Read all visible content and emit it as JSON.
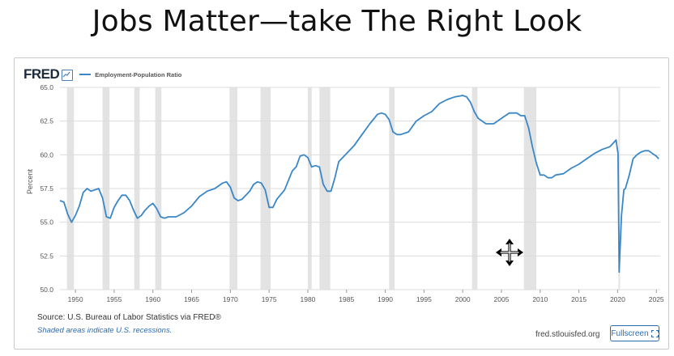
{
  "slide_title": "Jobs Matter—take The Right Look",
  "fred": {
    "logo": "FRED",
    "source": "Source: U.S. Bureau of Labor Statistics via FRED®",
    "note": "Shaded areas indicate U.S. recessions.",
    "url": "fred.stlouisfed.org",
    "fullscreen_label": "Fullscreen",
    "fullscreen_icon": "expand-icon"
  },
  "cursor_icon": "move-cursor-icon",
  "chart_data": {
    "type": "line",
    "title": "",
    "xlabel": "",
    "ylabel": "Percent",
    "xlim": [
      1948,
      2025.5
    ],
    "ylim": [
      50,
      65
    ],
    "yticks": [
      50.0,
      52.5,
      55.0,
      57.5,
      60.0,
      62.5,
      65.0
    ],
    "ytick_labels": [
      "50.0",
      "52.5",
      "55.0",
      "57.5",
      "60.0",
      "62.5",
      "65.0"
    ],
    "xticks": [
      1950,
      1955,
      1960,
      1965,
      1970,
      1975,
      1980,
      1985,
      1990,
      1995,
      2000,
      2005,
      2010,
      2015,
      2020,
      2025
    ],
    "xtick_labels": [
      "1950",
      "1955",
      "1960",
      "1965",
      "1970",
      "1975",
      "1980",
      "1985",
      "1990",
      "1995",
      "2000",
      "2005",
      "2010",
      "2015",
      "2020",
      "2025"
    ],
    "grid": true,
    "legend_position": "top-left",
    "line_color": "#3a87c8",
    "recession_color": "#e3e3e3",
    "recessions": [
      [
        1948.9,
        1949.8
      ],
      [
        1953.5,
        1954.4
      ],
      [
        1957.6,
        1958.3
      ],
      [
        1960.3,
        1961.1
      ],
      [
        1969.9,
        1970.9
      ],
      [
        1973.9,
        1975.2
      ],
      [
        1980.0,
        1980.5
      ],
      [
        1981.5,
        1982.9
      ],
      [
        1990.5,
        1991.2
      ],
      [
        2001.2,
        2001.9
      ],
      [
        2007.9,
        2009.5
      ],
      [
        2020.1,
        2020.3
      ]
    ],
    "series": [
      {
        "name": "Employment-Population Ratio",
        "x": [
          1948.0,
          1948.5,
          1949.0,
          1949.5,
          1950.0,
          1950.5,
          1951.0,
          1951.5,
          1952.0,
          1953.0,
          1953.5,
          1954.0,
          1954.5,
          1955.0,
          1955.5,
          1956.0,
          1956.5,
          1957.0,
          1957.5,
          1958.0,
          1958.5,
          1959.0,
          1959.5,
          1960.0,
          1960.5,
          1961.0,
          1961.5,
          1962.0,
          1963.0,
          1964.0,
          1965.0,
          1966.0,
          1967.0,
          1968.0,
          1969.0,
          1969.5,
          1970.0,
          1970.5,
          1971.0,
          1971.5,
          1972.0,
          1972.5,
          1973.0,
          1973.5,
          1974.0,
          1974.5,
          1975.0,
          1975.5,
          1976.0,
          1977.0,
          1978.0,
          1978.5,
          1979.0,
          1979.5,
          1980.0,
          1980.5,
          1981.0,
          1981.5,
          1982.0,
          1982.5,
          1983.0,
          1983.5,
          1984.0,
          1985.0,
          1986.0,
          1987.0,
          1988.0,
          1989.0,
          1989.5,
          1990.0,
          1990.5,
          1991.0,
          1991.5,
          1992.0,
          1993.0,
          1994.0,
          1995.0,
          1996.0,
          1997.0,
          1998.0,
          1999.0,
          2000.0,
          2000.5,
          2001.0,
          2001.5,
          2002.0,
          2003.0,
          2004.0,
          2005.0,
          2006.0,
          2006.5,
          2007.0,
          2007.5,
          2008.0,
          2008.5,
          2009.0,
          2009.5,
          2010.0,
          2010.5,
          2011.0,
          2011.5,
          2012.0,
          2013.0,
          2014.0,
          2015.0,
          2016.0,
          2017.0,
          2018.0,
          2019.0,
          2019.8,
          2020.05,
          2020.2,
          2020.3,
          2020.5,
          2020.8,
          2021.0,
          2021.5,
          2022.0,
          2022.5,
          2023.0,
          2023.5,
          2024.0,
          2024.5,
          2025.0,
          2025.3
        ],
        "values": [
          56.6,
          56.5,
          55.6,
          55.0,
          55.5,
          56.2,
          57.2,
          57.5,
          57.3,
          57.5,
          56.8,
          55.4,
          55.3,
          56.1,
          56.6,
          57.0,
          57.0,
          56.6,
          55.9,
          55.3,
          55.5,
          55.9,
          56.2,
          56.4,
          56.0,
          55.4,
          55.3,
          55.4,
          55.4,
          55.7,
          56.2,
          56.9,
          57.3,
          57.5,
          57.9,
          58.0,
          57.6,
          56.8,
          56.6,
          56.7,
          57.0,
          57.3,
          57.8,
          58.0,
          57.9,
          57.4,
          56.1,
          56.1,
          56.7,
          57.4,
          58.8,
          59.1,
          59.9,
          60.0,
          59.8,
          59.1,
          59.2,
          59.1,
          57.8,
          57.3,
          57.3,
          58.3,
          59.5,
          60.1,
          60.7,
          61.5,
          62.3,
          63.0,
          63.1,
          63.0,
          62.6,
          61.7,
          61.5,
          61.5,
          61.7,
          62.5,
          62.9,
          63.2,
          63.8,
          64.1,
          64.3,
          64.4,
          64.3,
          63.9,
          63.2,
          62.7,
          62.3,
          62.3,
          62.7,
          63.1,
          63.1,
          63.1,
          62.9,
          62.9,
          62.0,
          60.6,
          59.4,
          58.5,
          58.5,
          58.3,
          58.3,
          58.5,
          58.6,
          59.0,
          59.3,
          59.7,
          60.1,
          60.4,
          60.6,
          61.1,
          60.1,
          51.3,
          52.8,
          55.5,
          57.4,
          57.5,
          58.5,
          59.7,
          60.0,
          60.2,
          60.3,
          60.3,
          60.1,
          59.9,
          59.7
        ]
      }
    ]
  }
}
